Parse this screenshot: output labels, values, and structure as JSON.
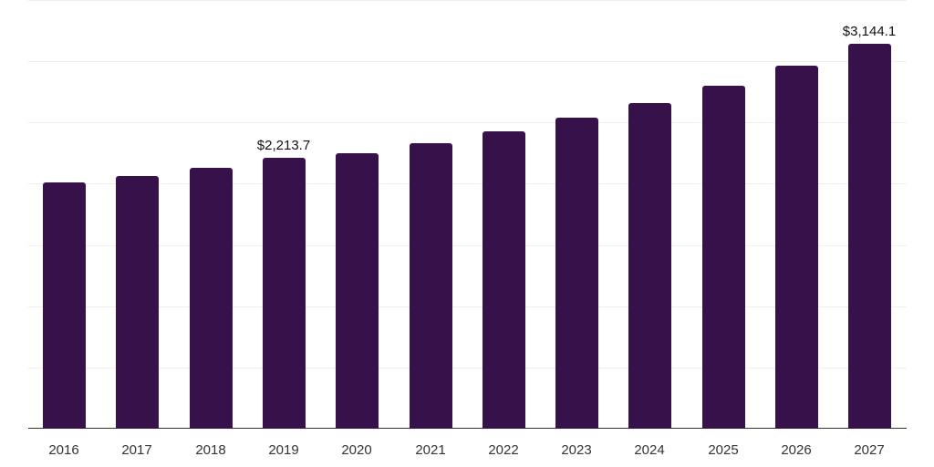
{
  "chart_data": {
    "type": "bar",
    "title": "",
    "xlabel": "",
    "ylabel": "",
    "categories": [
      "2016",
      "2017",
      "2018",
      "2019",
      "2020",
      "2021",
      "2022",
      "2023",
      "2024",
      "2025",
      "2026",
      "2027"
    ],
    "values": [
      2012,
      2065,
      2132,
      2213.7,
      2251,
      2333,
      2430,
      2542,
      2661,
      2803,
      2967,
      3144.1
    ],
    "annotations": [
      {
        "category": "2019",
        "label": "$2,213.7"
      },
      {
        "category": "2027",
        "label": "$3,144.1"
      }
    ],
    "ylim": [
      0,
      3500
    ],
    "grid": true,
    "gridlines": [
      0,
      500,
      1000,
      1500,
      2000,
      2500,
      3000,
      3500
    ],
    "bar_color": "#371149",
    "legend": null
  }
}
